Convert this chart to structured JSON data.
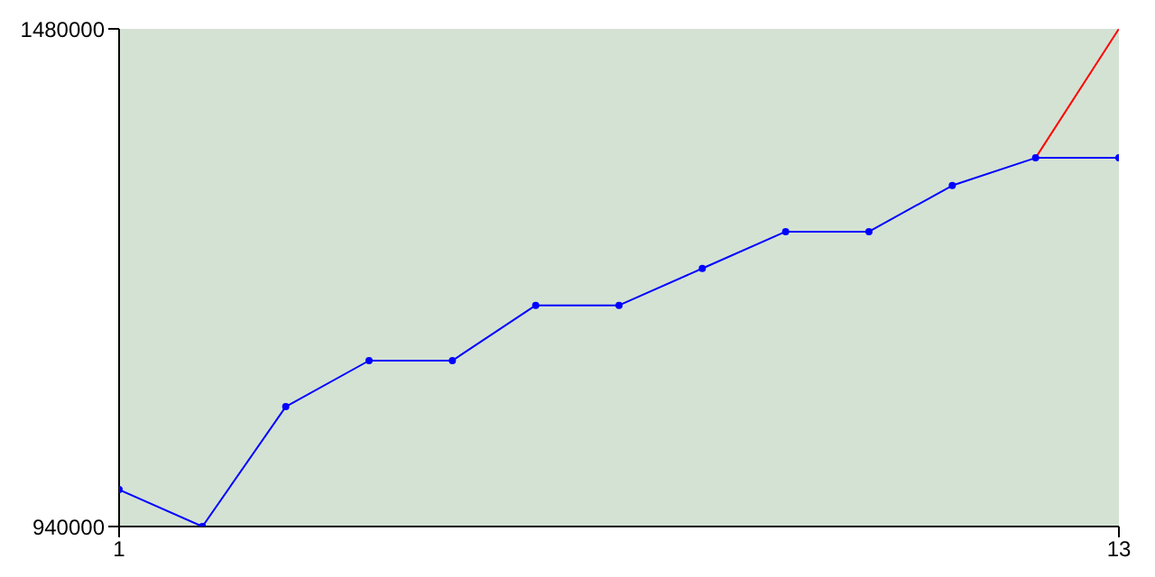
{
  "chart_data": {
    "type": "line",
    "x": [
      1,
      2,
      3,
      4,
      5,
      6,
      7,
      8,
      9,
      10,
      11,
      12,
      13
    ],
    "xlim": [
      1,
      13
    ],
    "xticks": [
      1,
      13
    ],
    "ylim": [
      940000,
      1480000
    ],
    "yticks": [
      940000,
      1480000
    ],
    "series": [
      {
        "color": "#ff0000",
        "marker": "none",
        "values": [
          null,
          null,
          null,
          null,
          null,
          null,
          null,
          null,
          null,
          null,
          null,
          1340000,
          1480000
        ]
      },
      {
        "color": "#0000ff",
        "marker": "circle",
        "values": [
          980000,
          940000,
          1070000,
          1120000,
          1120000,
          1180000,
          1180000,
          1220000,
          1260000,
          1260000,
          1310000,
          1340000,
          1340000
        ]
      }
    ]
  }
}
